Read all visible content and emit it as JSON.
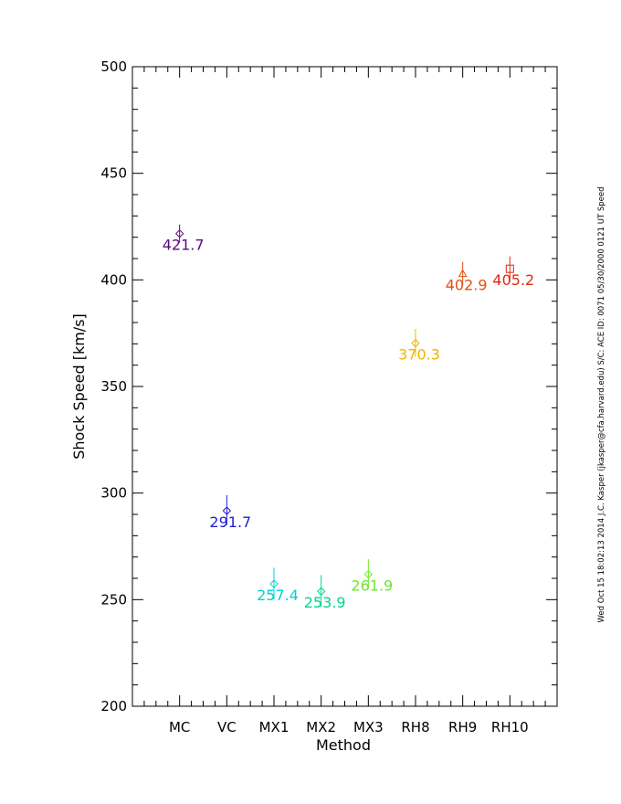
{
  "chart_data": {
    "type": "scatter",
    "title": "",
    "xlabel": "Method",
    "ylabel": "Shock Speed [km/s]",
    "ylim": [
      200,
      500
    ],
    "y_ticks": [
      "200",
      "250",
      "300",
      "350",
      "400",
      "450",
      "500"
    ],
    "grid": false,
    "categories": [
      "MC",
      "VC",
      "MX1",
      "MX2",
      "MX3",
      "RH8",
      "RH9",
      "RH10"
    ],
    "points": [
      {
        "category": "MC",
        "value": 421.7,
        "err_low": 417.5,
        "err_high": 426.0,
        "label": "421.7",
        "marker": "diamond",
        "color": "#5a0a82"
      },
      {
        "category": "VC",
        "value": 291.7,
        "err_low": 285.0,
        "err_high": 299.0,
        "label": "291.7",
        "marker": "diamond",
        "color": "#1f1fcf"
      },
      {
        "category": "MX1",
        "value": 257.4,
        "err_low": 250.0,
        "err_high": 265.0,
        "label": "257.4",
        "marker": "diamond",
        "color": "#00d2d2"
      },
      {
        "category": "MX2",
        "value": 253.9,
        "err_low": 246.5,
        "err_high": 261.5,
        "label": "253.9",
        "marker": "diamond",
        "color": "#00d88a"
      },
      {
        "category": "MX3",
        "value": 261.9,
        "err_low": 255.0,
        "err_high": 269.0,
        "label": "261.9",
        "marker": "diamond",
        "color": "#6ee82a"
      },
      {
        "category": "RH8",
        "value": 370.3,
        "err_low": 364.0,
        "err_high": 377.0,
        "label": "370.3",
        "marker": "diamond",
        "color": "#f0b400"
      },
      {
        "category": "RH9",
        "value": 402.9,
        "err_low": 397.5,
        "err_high": 408.5,
        "label": "402.9",
        "marker": "triangle",
        "color": "#e05010"
      },
      {
        "category": "RH10",
        "value": 405.2,
        "err_low": 399.5,
        "err_high": 411.0,
        "label": "405.2",
        "marker": "square",
        "color": "#e02a10"
      }
    ]
  },
  "side_note": "Wed Oct 15 18:02:13 2014   J.C. Kasper (jkasper@cfa.harvard.edu)   S/C: ACE ID: 0071 05/30/2000  0121 UT Speed"
}
